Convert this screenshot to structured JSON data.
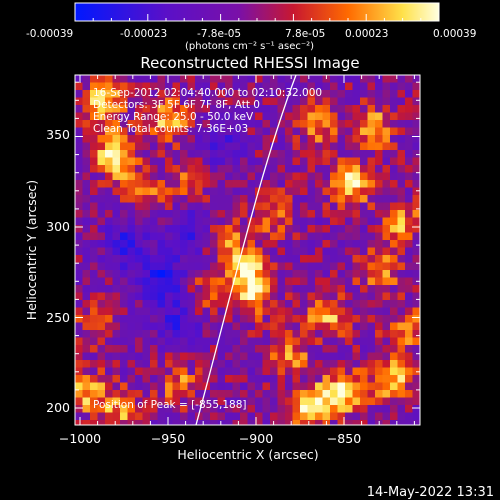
{
  "colorbar": {
    "tick_labels": [
      "-0.00039",
      "-0.00023",
      "-7.8e-05",
      "7.8e-05",
      "0.00023",
      "0.00039"
    ],
    "unit_label": "(photons cm⁻² s⁻¹ asec⁻²)",
    "range": [
      -0.00039,
      0.00039
    ],
    "colors": [
      "#0018ff",
      "#5a10c8",
      "#7a10a8",
      "#c81830",
      "#ff6a00",
      "#ffe14a",
      "#ffffe0"
    ]
  },
  "plot": {
    "title": "Reconstructed RHESSI Image",
    "xlabel": "Heliocentric X (arcsec)",
    "ylabel": "Heliocentric Y (arcsec)",
    "x_ticks": [
      "−1000",
      "−950",
      "−900",
      "−850"
    ],
    "y_ticks": [
      "200",
      "250",
      "300",
      "350"
    ],
    "annotations": [
      "16-Sep-2012 02:04:40.000 to 02:10:32.000",
      "Detectors: 3F 5F 6F 7F 8F, Att 0",
      "Energy Range: 25.0 - 50.0 keV",
      "Clean    Total counts: 7.36E+03"
    ],
    "peak_label": "Position of Peak = [-855,188]"
  },
  "footer": {
    "timestamp": "14-May-2022 13:31"
  }
}
